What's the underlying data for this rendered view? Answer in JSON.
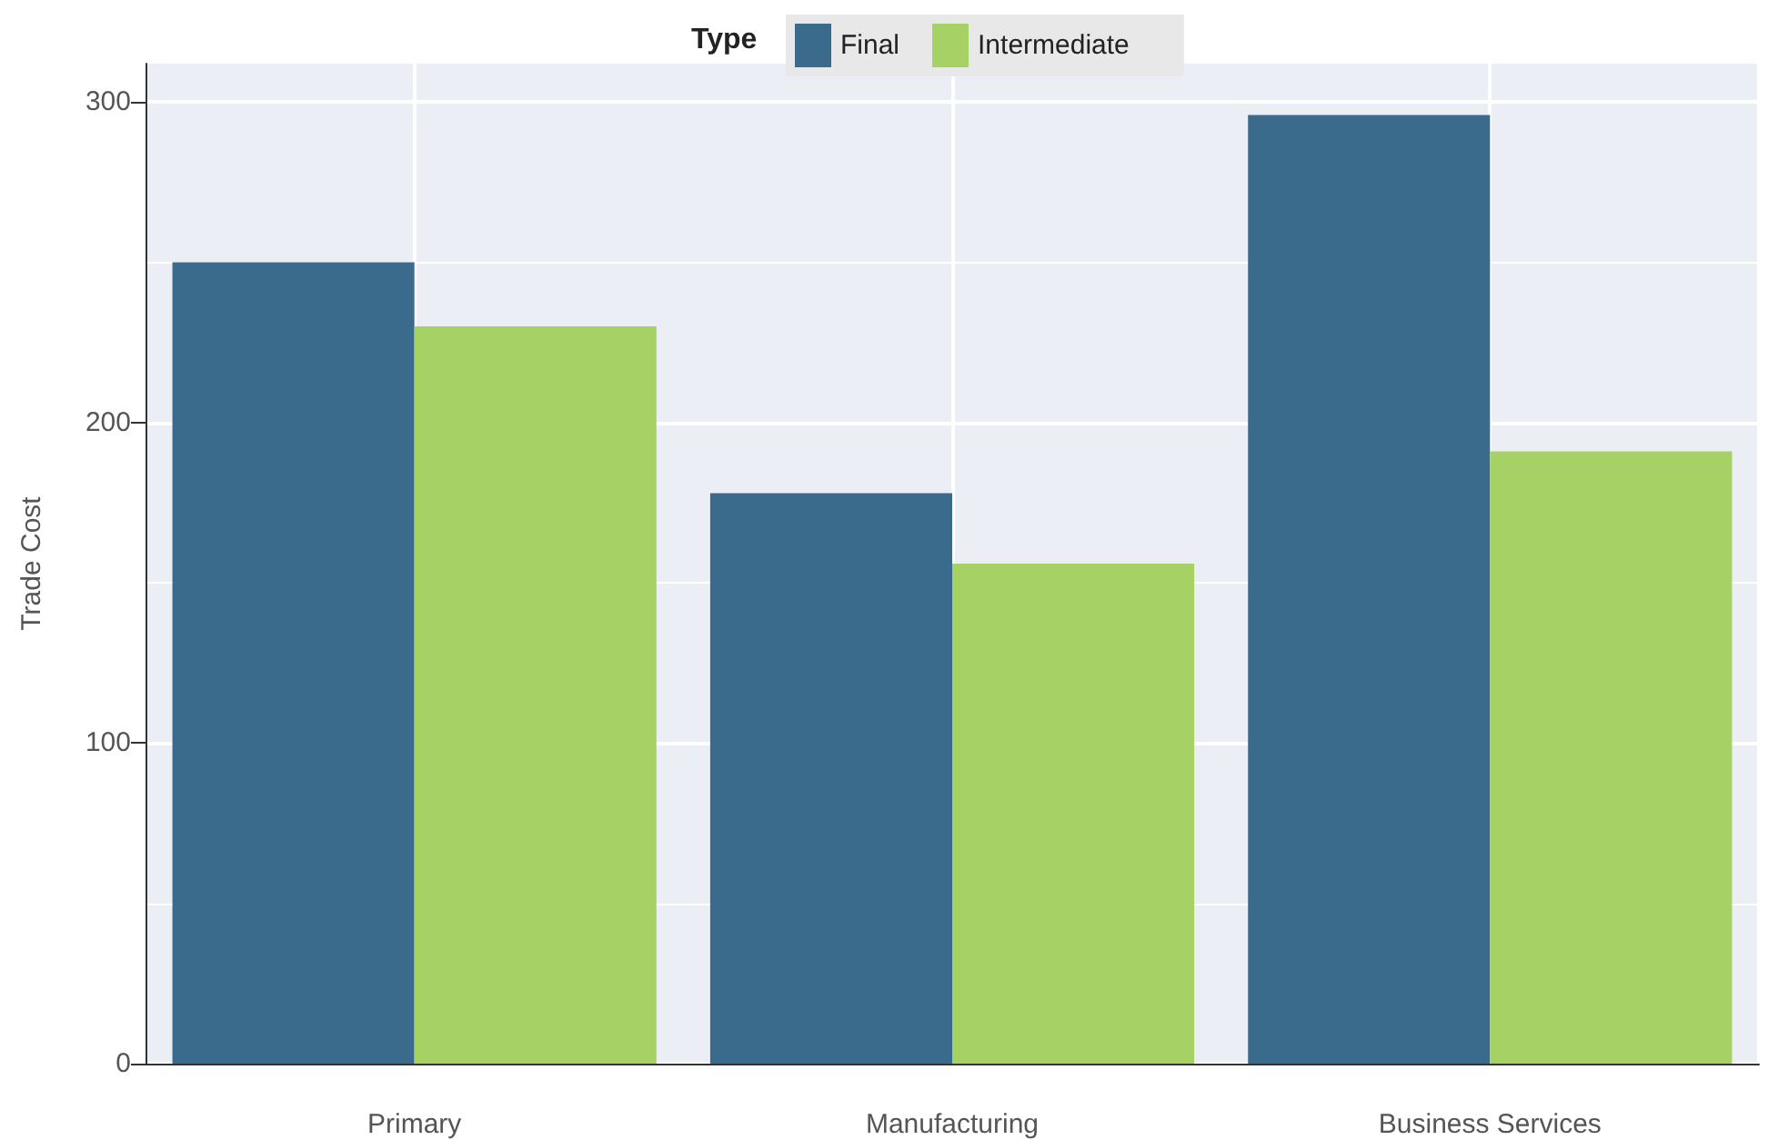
{
  "chart_data": {
    "type": "bar",
    "ylabel": "Trade Cost",
    "legend_title": "Type",
    "categories": [
      "Primary",
      "Manufacturing",
      "Business Services"
    ],
    "series": [
      {
        "name": "Final",
        "color": "#3a6a8c",
        "values": [
          250,
          178,
          296
        ]
      },
      {
        "name": "Intermediate",
        "color": "#a5d165",
        "values": [
          230,
          156,
          191
        ]
      }
    ],
    "ylim": [
      0,
      312
    ],
    "yticks": [
      0,
      100,
      200,
      300
    ],
    "grid": true,
    "legend": "top"
  }
}
